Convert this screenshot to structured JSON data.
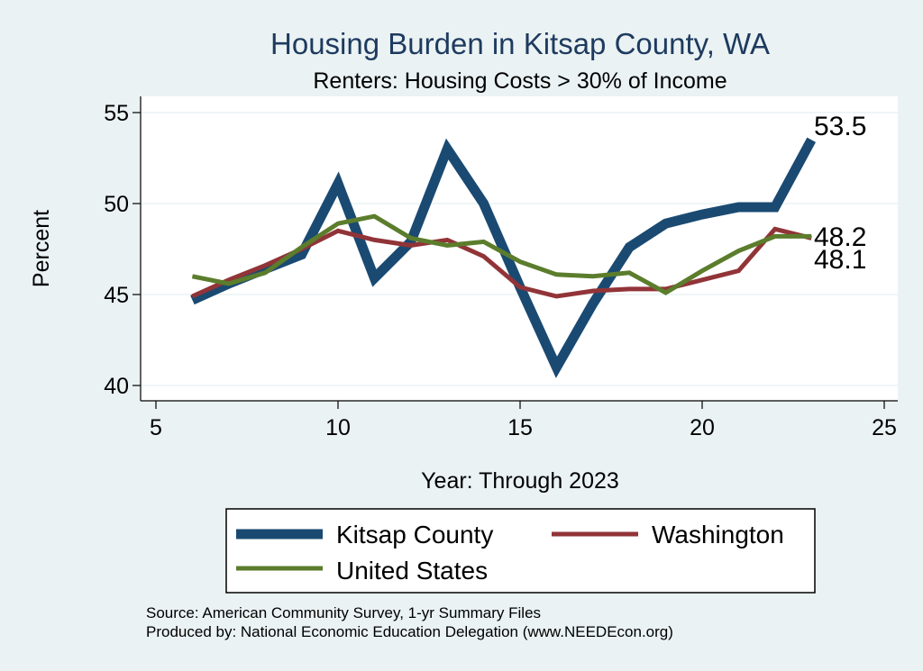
{
  "chart_data": {
    "type": "line",
    "title": "Housing Burden in Kitsap County, WA",
    "subtitle": "Renters: Housing Costs > 30% of Income",
    "xlabel": "Year: Through 2023",
    "ylabel": "Percent",
    "xlim": [
      5,
      25
    ],
    "ylim": [
      40,
      55
    ],
    "xticks": [
      5,
      10,
      15,
      20,
      25
    ],
    "yticks": [
      40,
      45,
      50,
      55
    ],
    "grid": "horizontal",
    "legend_position": "bottom",
    "series": [
      {
        "name": "Kitsap County",
        "color": "#1a4a72",
        "x": [
          6,
          7,
          8,
          9,
          10,
          11,
          12,
          13,
          14,
          15,
          16,
          17,
          18,
          19,
          20,
          21,
          22,
          23
        ],
        "values": [
          44.7,
          45.6,
          46.4,
          47.2,
          51.1,
          45.9,
          47.9,
          53.0,
          50.0,
          45.4,
          41.0,
          44.5,
          47.6,
          48.9,
          49.4,
          49.8,
          49.8,
          53.5
        ],
        "end_label": "53.5"
      },
      {
        "name": "Washington",
        "color": "#913438",
        "x": [
          6,
          7,
          8,
          9,
          10,
          11,
          12,
          13,
          14,
          15,
          16,
          17,
          18,
          19,
          20,
          21,
          22,
          23
        ],
        "values": [
          44.9,
          45.8,
          46.6,
          47.5,
          48.5,
          48.0,
          47.7,
          48.0,
          47.1,
          45.4,
          44.9,
          45.2,
          45.3,
          45.3,
          45.8,
          46.3,
          48.6,
          48.1
        ],
        "end_label": "48.1"
      },
      {
        "name": "United States",
        "color": "#5b7d2c",
        "x": [
          6,
          7,
          8,
          9,
          10,
          11,
          12,
          13,
          14,
          15,
          16,
          17,
          18,
          19,
          20,
          21,
          22,
          23
        ],
        "values": [
          46.0,
          45.6,
          46.2,
          47.6,
          48.9,
          49.3,
          48.1,
          47.7,
          47.9,
          46.8,
          46.1,
          46.0,
          46.2,
          45.1,
          46.3,
          47.4,
          48.2,
          48.2
        ],
        "end_label": "48.2"
      }
    ]
  },
  "notes": {
    "source": "Source: American Community Survey, 1-yr Summary Files",
    "produced": "Produced by: National Economic Education Delegation (www.NEEDEcon.org)"
  }
}
